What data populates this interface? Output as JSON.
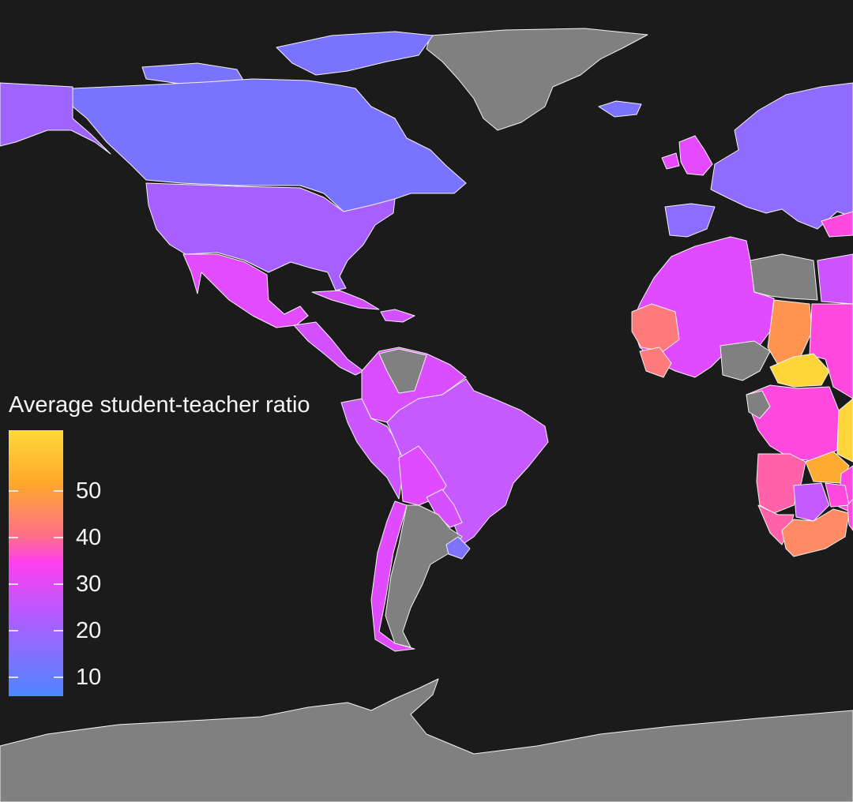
{
  "legend": {
    "title": "Average student-teacher ratio",
    "ticks": [
      {
        "value": 10,
        "label": "10"
      },
      {
        "value": 20,
        "label": "20"
      },
      {
        "value": 30,
        "label": "30"
      },
      {
        "value": 40,
        "label": "40"
      },
      {
        "value": 50,
        "label": "50"
      }
    ],
    "range": [
      6,
      63
    ],
    "gradient": [
      "#4e86ff",
      "#b05cff",
      "#ff3ff0",
      "#ff6e8c",
      "#ffa82b",
      "#ffd93a"
    ]
  },
  "colors": {
    "background": "#1b1b1b",
    "no_data": "#808080",
    "border": "#f2f2f2"
  },
  "regions": [
    {
      "id": "greenland",
      "value": null,
      "color": "#808080"
    },
    {
      "id": "antarctica",
      "value": null,
      "color": "#808080"
    },
    {
      "id": "canada",
      "value": 12,
      "color": "#7a73ff"
    },
    {
      "id": "canada-arctic",
      "value": 12,
      "color": "#7a73ff"
    },
    {
      "id": "alaska",
      "value": 16,
      "color": "#9f64ff"
    },
    {
      "id": "usa",
      "value": 16,
      "color": "#a75fff"
    },
    {
      "id": "mexico",
      "value": 26,
      "color": "#e24bff"
    },
    {
      "id": "central-america",
      "value": 23,
      "color": "#d350ff"
    },
    {
      "id": "venezuela-colombia",
      "value": 24,
      "color": "#da4eff"
    },
    {
      "id": "guianas",
      "value": null,
      "color": "#808080"
    },
    {
      "id": "brazil",
      "value": 21,
      "color": "#c659ff"
    },
    {
      "id": "peru-ecuador",
      "value": 21,
      "color": "#cb55ff"
    },
    {
      "id": "bolivia",
      "value": 25,
      "color": "#e04bff"
    },
    {
      "id": "paraguay",
      "value": 23,
      "color": "#d650ff"
    },
    {
      "id": "chile",
      "value": 26,
      "color": "#e04bff"
    },
    {
      "id": "argentina",
      "value": null,
      "color": "#808080"
    },
    {
      "id": "uruguay",
      "value": 13,
      "color": "#7f72ff"
    },
    {
      "id": "iceland",
      "value": 11,
      "color": "#7a73ff"
    },
    {
      "id": "uk",
      "value": 27,
      "color": "#e54aff"
    },
    {
      "id": "europe",
      "value": 12,
      "color": "#8f6bff"
    },
    {
      "id": "iberia",
      "value": 13,
      "color": "#8c6cff"
    },
    {
      "id": "sahara-west-africa",
      "value": 27,
      "color": "#e04bff"
    },
    {
      "id": "libya",
      "value": null,
      "color": "#808080"
    },
    {
      "id": "egypt",
      "value": 23,
      "color": "#cf52ff"
    },
    {
      "id": "mauritania",
      "value": 35,
      "color": "#ff7a7a"
    },
    {
      "id": "chad",
      "value": 43,
      "color": "#ff9450"
    },
    {
      "id": "nigeria",
      "value": null,
      "color": "#808080"
    },
    {
      "id": "car",
      "value": 55,
      "color": "#ffd53a"
    },
    {
      "id": "congo-region",
      "value": 30,
      "color": "#ff48de"
    },
    {
      "id": "angola",
      "value": 33,
      "color": "#ff62a8"
    },
    {
      "id": "zambia",
      "value": 48,
      "color": "#ffaa30"
    },
    {
      "id": "south-africa",
      "value": 40,
      "color": "#ff8a64"
    },
    {
      "id": "botswana",
      "value": 23,
      "color": "#c55bff"
    }
  ]
}
